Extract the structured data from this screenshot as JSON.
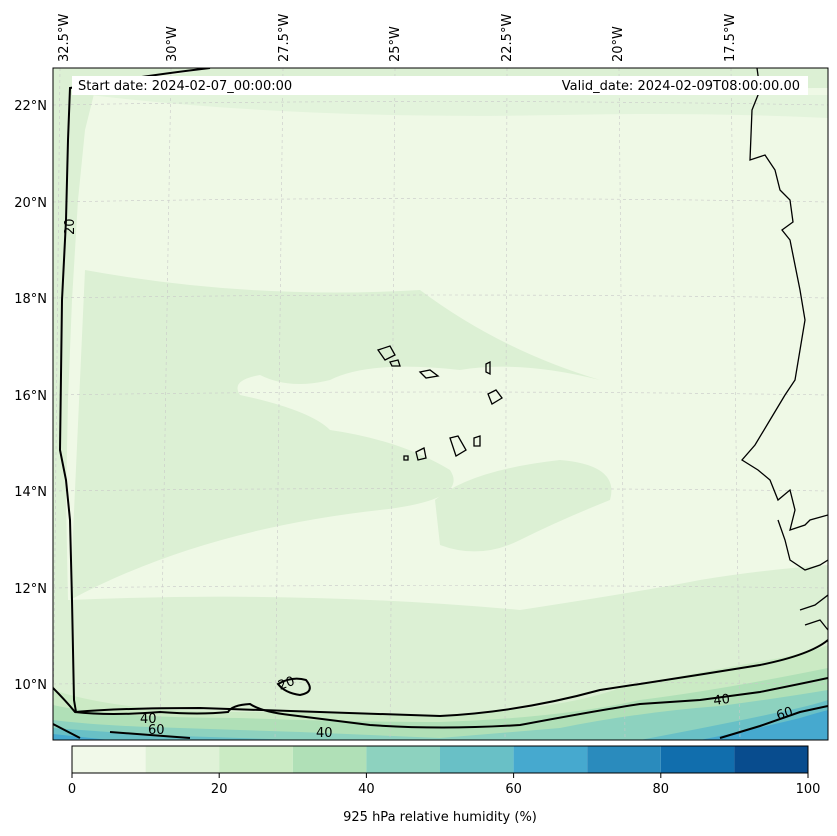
{
  "map": {
    "start_date": "Start date: 2024-02-07_00:00:00",
    "valid_date": "Valid_date: 2024-02-09T08:00:00.00",
    "lon_labels": [
      "32.5°W",
      "30°W",
      "27.5°W",
      "25°W",
      "22.5°W",
      "20°W",
      "17.5°W"
    ],
    "lat_labels": [
      "22°N",
      "20°N",
      "18°N",
      "16°N",
      "14°N",
      "12°N",
      "10°N"
    ],
    "contour_labels": [
      "20",
      "20",
      "40",
      "60",
      "40",
      "40",
      "60"
    ]
  },
  "colorbar": {
    "title": "925 hPa relative humidity (%)",
    "tick_labels": [
      "0",
      "20",
      "40",
      "60",
      "80",
      "100"
    ],
    "levels": [
      0,
      10,
      20,
      30,
      40,
      50,
      60,
      70,
      80,
      90,
      100
    ],
    "colors": [
      "#f1f9e9",
      "#dff2d7",
      "#cbebc4",
      "#b0e0b7",
      "#8dd2bf",
      "#69c0c6",
      "#46a9cf",
      "#2a8bbd",
      "#116ead",
      "#084c8e"
    ]
  }
}
